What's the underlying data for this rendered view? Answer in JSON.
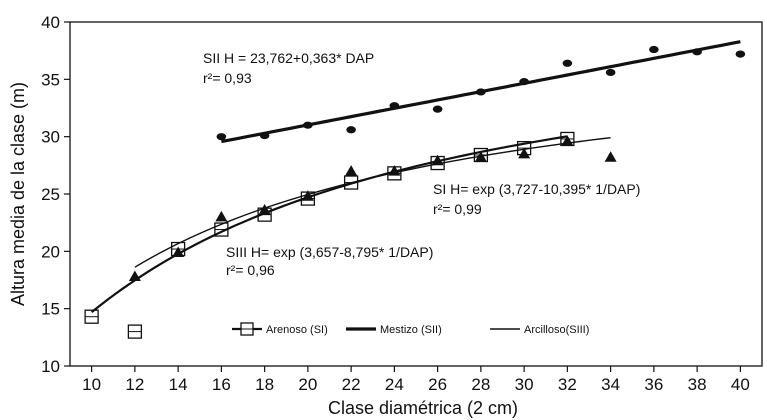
{
  "chart_data": {
    "type": "scatter",
    "xlabel": "Clase diamétrica (2 cm)",
    "ylabel": "Altura  media de la clase (m)",
    "xlim": [
      9,
      41
    ],
    "ylim": [
      10,
      40
    ],
    "xticks": [
      10,
      12,
      14,
      16,
      18,
      20,
      22,
      24,
      26,
      28,
      30,
      32,
      34,
      36,
      38,
      40
    ],
    "yticks": [
      10,
      15,
      20,
      25,
      30,
      35,
      40
    ],
    "grid": false,
    "legend_position": "bottom-right",
    "series": [
      {
        "name": "Arenoso (SI)",
        "marker": "square-open",
        "line_width": 2.2,
        "curve": {
          "type": "exp_inv",
          "a": 3.727,
          "b": -10.395,
          "x_range": [
            10,
            32
          ]
        },
        "points": [
          {
            "x": 10,
            "y": 14.3
          },
          {
            "x": 12,
            "y": 13.0
          },
          {
            "x": 14,
            "y": 20.2
          },
          {
            "x": 16,
            "y": 21.9
          },
          {
            "x": 18,
            "y": 23.2
          },
          {
            "x": 20,
            "y": 24.6
          },
          {
            "x": 22,
            "y": 26.0
          },
          {
            "x": 24,
            "y": 26.8
          },
          {
            "x": 26,
            "y": 27.7
          },
          {
            "x": 28,
            "y": 28.4
          },
          {
            "x": 30,
            "y": 29.0
          },
          {
            "x": 32,
            "y": 29.8
          }
        ]
      },
      {
        "name": "Mestizo (SII)",
        "marker": "circle",
        "line_width": 3.2,
        "curve": {
          "type": "linear",
          "a": 23.762,
          "b": 0.363,
          "x_range": [
            16,
            40
          ]
        },
        "points": [
          {
            "x": 16,
            "y": 30.0
          },
          {
            "x": 18,
            "y": 30.1
          },
          {
            "x": 20,
            "y": 31.0
          },
          {
            "x": 22,
            "y": 30.6
          },
          {
            "x": 24,
            "y": 32.7
          },
          {
            "x": 26,
            "y": 32.4
          },
          {
            "x": 28,
            "y": 33.9
          },
          {
            "x": 30,
            "y": 34.8
          },
          {
            "x": 32,
            "y": 36.4
          },
          {
            "x": 34,
            "y": 35.6
          },
          {
            "x": 36,
            "y": 37.6
          },
          {
            "x": 38,
            "y": 37.4
          },
          {
            "x": 40,
            "y": 37.2
          }
        ]
      },
      {
        "name": "Arcilloso(SIII)",
        "marker": "triangle",
        "line_width": 1.4,
        "curve": {
          "type": "exp_inv",
          "a": 3.657,
          "b": -8.795,
          "x_range": [
            12,
            34
          ]
        },
        "points": [
          {
            "x": 12,
            "y": 17.8
          },
          {
            "x": 14,
            "y": 19.9
          },
          {
            "x": 16,
            "y": 23.0
          },
          {
            "x": 18,
            "y": 23.6
          },
          {
            "x": 20,
            "y": 24.8
          },
          {
            "x": 22,
            "y": 27.0
          },
          {
            "x": 24,
            "y": 27.0
          },
          {
            "x": 26,
            "y": 27.9
          },
          {
            "x": 28,
            "y": 28.2
          },
          {
            "x": 30,
            "y": 28.5
          },
          {
            "x": 32,
            "y": 29.6
          },
          {
            "x": 34,
            "y": 28.2
          }
        ]
      }
    ],
    "annotations": [
      {
        "label_id": "sii_eq",
        "text": "SII   H = 23,762+0,363* DAP"
      },
      {
        "label_id": "sii_r2",
        "text": "r²= 0,93"
      },
      {
        "label_id": "si_eq",
        "text": "SI   H= exp (3,727-10,395* 1/DAP)"
      },
      {
        "label_id": "si_r2",
        "text": "r²= 0,99"
      },
      {
        "label_id": "siii_eq",
        "text": "SIII   H= exp (3,657-8,795* 1/DAP)"
      },
      {
        "label_id": "siii_r2",
        "text": "r²= 0,96"
      }
    ]
  }
}
